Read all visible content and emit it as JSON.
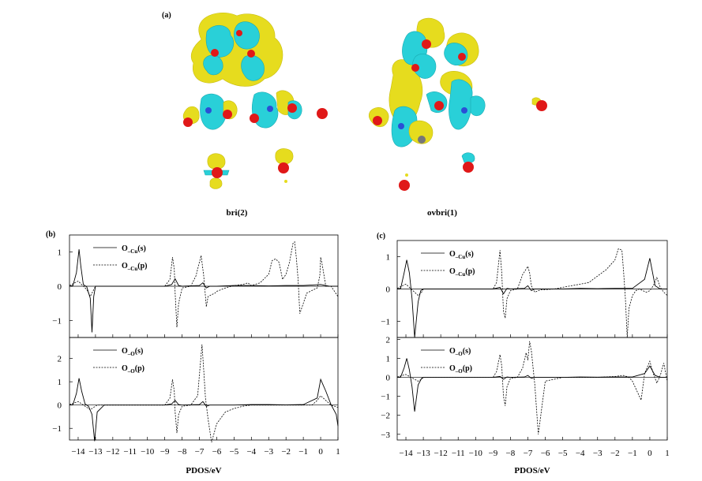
{
  "figure": {
    "panel_a_label": "(a)",
    "panel_b_label": "(b)",
    "panel_c_label": "(c)",
    "structure_left_caption": "bri(2)",
    "structure_right_caption": "ovbri(1)",
    "colors": {
      "lobe_positive": "#e6dc1e",
      "lobe_negative": "#29d0d8",
      "atom_O": "#e01818",
      "atom_Cu": "#2a4fd6"
    }
  },
  "chart_data": [
    {
      "type": "line",
      "panel": "(b)",
      "xlabel": "PDOS/eV",
      "xlim": [
        -14.5,
        1
      ],
      "x_ticks": [
        "−14",
        "−13",
        "−12",
        "−11",
        "−10",
        "−9",
        "−8",
        "−7",
        "−6",
        "−5",
        "−4",
        "−3",
        "−2",
        "−1",
        "0",
        "1"
      ],
      "subplots": [
        {
          "ylim": [
            -1.5,
            1.5
          ],
          "y_ticks": [
            "1",
            "0",
            "−1"
          ],
          "series": [
            {
              "name": "O_Cu(s)",
              "sub": "–Cu",
              "base": "O",
              "tail": "(s)",
              "style": "solid",
              "x": [
                -14.5,
                -14.3,
                -14.1,
                -13.95,
                -13.85,
                -13.7,
                -13.5,
                -13.3,
                -13.2,
                -13.1,
                -13,
                -12,
                -9,
                -8.6,
                -8.4,
                -8.2,
                -8,
                -7,
                -6.8,
                -6.6,
                -6.4,
                -6,
                -5,
                -4,
                -3,
                -2,
                -1,
                0,
                0.5,
                1
              ],
              "y": [
                0,
                0.02,
                0.4,
                1.08,
                0.6,
                0.05,
                -0.02,
                -0.35,
                -1.35,
                -0.3,
                0,
                0,
                0,
                0.05,
                0.22,
                0.02,
                0,
                0.02,
                0.1,
                -0.05,
                0,
                0,
                0.02,
                0.02,
                0.01,
                0.02,
                0.02,
                0.05,
                0,
                0
              ]
            },
            {
              "name": "O_Cu(p)",
              "sub": "–Cu",
              "base": "O",
              "tail": "(p)",
              "style": "dashed",
              "x": [
                -14.5,
                -14.2,
                -14,
                -13.8,
                -13.5,
                -13.3,
                -13.1,
                -13,
                -9,
                -8.7,
                -8.55,
                -8.45,
                -8.4,
                -8.3,
                -8.2,
                -8,
                -7.5,
                -7.2,
                -6.9,
                -6.75,
                -6.6,
                -6.5,
                -6.3,
                -6.1,
                -6,
                -5.5,
                -5,
                -4.5,
                -4.2,
                -4,
                -3.5,
                -3,
                -2.8,
                -2.6,
                -2.4,
                -2.2,
                -2,
                -1.8,
                -1.6,
                -1.5,
                -1.4,
                -1.3,
                -1.2,
                -1,
                -0.8,
                -0.6,
                -0.4,
                -0.2,
                -0.05,
                0,
                0.1,
                0.3,
                0.6,
                1
              ],
              "y": [
                0.02,
                0.1,
                0.15,
                0.05,
                -0.1,
                -0.3,
                -0.1,
                0,
                0,
                0.2,
                0.85,
                0.5,
                -0.2,
                -1.2,
                -0.5,
                -0.05,
                0,
                0.3,
                0.9,
                0.3,
                -0.6,
                -0.3,
                -0.25,
                -0.2,
                -0.15,
                -0.05,
                0.02,
                0.05,
                0.1,
                0.02,
                0.1,
                0.35,
                0.75,
                0.8,
                0.7,
                0.2,
                0.35,
                0.7,
                1.25,
                1.3,
                0.8,
                0.2,
                -0.8,
                -0.5,
                -0.2,
                -0.15,
                -0.1,
                -0.05,
                0.3,
                0.85,
                0.6,
                0,
                0,
                -0.3
              ]
            }
          ],
          "legend": "top-left"
        },
        {
          "ylim": [
            -1.5,
            2.9
          ],
          "y_ticks": [
            "2",
            "1",
            "0",
            "−1"
          ],
          "series": [
            {
              "name": "O_O(s)",
              "sub": "–O",
              "base": "O",
              "tail": "(s)",
              "style": "solid",
              "x": [
                -14.5,
                -14.3,
                -14.1,
                -13.95,
                -13.8,
                -13.6,
                -13.4,
                -13.2,
                -13.05,
                -12.9,
                -12.5,
                -9,
                -8.6,
                -8.4,
                -8.2,
                -8,
                -7,
                -6.8,
                -6.6,
                -6.4,
                -6,
                -5,
                -4,
                -3,
                -2,
                -1,
                -0.2,
                0,
                0.3,
                0.6,
                0.9,
                1
              ],
              "y": [
                0,
                0.02,
                0.5,
                1.15,
                0.6,
                0.05,
                -0.05,
                -0.4,
                -1.55,
                -0.3,
                0,
                0,
                0.05,
                0.2,
                0.02,
                0,
                0.02,
                0.15,
                -0.05,
                0,
                0,
                0,
                0.02,
                0.02,
                0.01,
                0.02,
                0.3,
                1.1,
                0.6,
                0.02,
                -0.4,
                -0.9
              ]
            },
            {
              "name": "O_O(p)",
              "sub": "–O",
              "base": "O",
              "tail": "(p)",
              "style": "dashed",
              "x": [
                -14.5,
                -14.2,
                -14,
                -13.8,
                -13.5,
                -13.3,
                -13.1,
                -12.9,
                -9,
                -8.7,
                -8.55,
                -8.45,
                -8.4,
                -8.3,
                -8.2,
                -8,
                -7.5,
                -7.1,
                -6.85,
                -6.75,
                -6.65,
                -6.5,
                -6.3,
                -6,
                -5.5,
                -5,
                -4.5,
                -4,
                -3,
                -2,
                -1,
                -0.5,
                -0.2,
                0,
                0.3,
                0.6,
                1
              ],
              "y": [
                0.02,
                0.1,
                0.15,
                0.05,
                -0.1,
                -0.2,
                -0.1,
                0,
                0,
                0.3,
                1.1,
                0.6,
                -0.3,
                -1.2,
                -0.4,
                -0.05,
                0,
                0.4,
                2.6,
                1.5,
                0.3,
                -0.6,
                -1.6,
                -0.8,
                -0.3,
                -0.15,
                -0.05,
                0,
                0,
                0,
                0,
                0,
                0.2,
                0.4,
                0.2,
                0,
                -0.1
              ]
            }
          ],
          "legend": "top-left"
        }
      ]
    },
    {
      "type": "line",
      "panel": "(c)",
      "xlabel": "PDOS/eV",
      "xlim": [
        -14.5,
        1
      ],
      "x_ticks": [
        "−14",
        "−13",
        "−12",
        "−11",
        "−10",
        "−9",
        "−8",
        "−7",
        "−6",
        "−5",
        "−4",
        "−3",
        "−2",
        "−1",
        "0",
        "1"
      ],
      "subplots": [
        {
          "ylim": [
            -1.5,
            1.5
          ],
          "y_ticks": [
            "1",
            "0",
            "−1"
          ],
          "series": [
            {
              "name": "O_Cu(s)",
              "sub": "–Cu",
              "base": "O",
              "tail": "(s)",
              "style": "solid",
              "x": [
                -14.5,
                -14.3,
                -14.1,
                -13.95,
                -13.8,
                -13.65,
                -13.5,
                -13.3,
                -13.15,
                -13,
                -12,
                -9,
                -8.6,
                -8.4,
                -8.2,
                -8,
                -7.2,
                -7,
                -6.8,
                -6.6,
                -6,
                -5,
                -4,
                -3,
                -2,
                -1,
                -0.3,
                0,
                0.3,
                0.6,
                1
              ],
              "y": [
                0,
                0.02,
                0.5,
                0.9,
                0.5,
                -0.3,
                -1.5,
                -0.4,
                -0.05,
                0,
                0,
                0,
                0.05,
                -0.15,
                0.02,
                0,
                0.02,
                0.1,
                -0.05,
                0,
                0,
                0,
                0.02,
                0.01,
                0.02,
                0.02,
                0.3,
                0.95,
                0.1,
                0,
                0
              ]
            },
            {
              "name": "O_Cu(p)",
              "sub": "–Cu",
              "base": "O",
              "tail": "(p)",
              "style": "dashed",
              "x": [
                -14.5,
                -14.2,
                -14,
                -13.8,
                -13.5,
                -13.3,
                -13.1,
                -13,
                -9,
                -8.8,
                -8.6,
                -8.5,
                -8.45,
                -8.4,
                -8.3,
                -8.2,
                -8,
                -7.6,
                -7.3,
                -7,
                -6.9,
                -6.8,
                -6.6,
                -6.4,
                -6.2,
                -6,
                -5.5,
                -5,
                -4.5,
                -4,
                -3.5,
                -3,
                -2.5,
                -2,
                -1.8,
                -1.6,
                -1.5,
                -1.4,
                -1.3,
                -1.2,
                -1,
                -0.8,
                -0.6,
                -0.4,
                -0.2,
                0,
                0.2,
                0.4,
                0.6,
                0.8,
                1
              ],
              "y": [
                0.02,
                0.1,
                0.15,
                0.05,
                -0.1,
                -0.2,
                -0.1,
                0,
                0,
                0.2,
                1.2,
                0.5,
                -0.1,
                -0.7,
                -0.9,
                -0.3,
                -0.05,
                0,
                0.45,
                0.7,
                0.5,
                0.1,
                -0.1,
                -0.05,
                -0.02,
                -0.02,
                0,
                0.05,
                0.1,
                0.15,
                0.2,
                0.4,
                0.6,
                0.9,
                1.25,
                1.2,
                0.5,
                -0.3,
                -1.5,
                -0.6,
                -0.2,
                -0.05,
                0,
                -0.05,
                -0.1,
                -0.05,
                0.1,
                0.35,
                0.05,
                -0.1,
                -0.2
              ]
            }
          ],
          "legend": "top-left"
        },
        {
          "ylim": [
            -3.3,
            2.1
          ],
          "y_ticks": [
            "2",
            "1",
            "0",
            "−1",
            "−2",
            "−3"
          ],
          "series": [
            {
              "name": "O_O(s)",
              "sub": "–O",
              "base": "O",
              "tail": "(s)",
              "style": "solid",
              "x": [
                -14.5,
                -14.3,
                -14.1,
                -13.95,
                -13.8,
                -13.65,
                -13.5,
                -13.3,
                -13.1,
                -13,
                -12,
                -9,
                -8.6,
                -8.4,
                -8.2,
                -8,
                -7.2,
                -7,
                -6.8,
                -6.6,
                -6,
                -5,
                -4,
                -3,
                -2,
                -1,
                -0.3,
                0,
                0.3,
                0.6,
                1
              ],
              "y": [
                0,
                0.02,
                0.5,
                1.0,
                0.4,
                -0.5,
                -1.8,
                -0.4,
                -0.05,
                0,
                0,
                0,
                0.05,
                -0.1,
                0.02,
                0,
                0.02,
                0.1,
                -0.05,
                0,
                0,
                0,
                0.02,
                0.01,
                0.02,
                0.02,
                0.2,
                0.6,
                0.1,
                0,
                0
              ]
            },
            {
              "name": "O_O(p)",
              "sub": "–O",
              "base": "O",
              "tail": "(p)",
              "style": "dashed",
              "x": [
                -14.5,
                -14.2,
                -14,
                -13.8,
                -13.5,
                -13.3,
                -13.1,
                -13,
                -9,
                -8.8,
                -8.6,
                -8.5,
                -8.45,
                -8.4,
                -8.3,
                -8.2,
                -8,
                -7.6,
                -7.3,
                -7.1,
                -7,
                -6.9,
                -6.8,
                -6.6,
                -6.4,
                -6,
                -5,
                -4,
                -3,
                -2,
                -1.5,
                -1.2,
                -1,
                -0.5,
                -0.3,
                0,
                0.2,
                0.4,
                0.6,
                0.8,
                1
              ],
              "y": [
                0.02,
                0.1,
                0.15,
                0.05,
                -0.1,
                -0.2,
                -0.1,
                0,
                0,
                0.3,
                1.2,
                0.6,
                -0.2,
                -1.0,
                -1.5,
                -0.5,
                -0.05,
                0,
                0.5,
                1.3,
                0.9,
                1.9,
                1.4,
                -0.4,
                -3.0,
                -0.2,
                0,
                0,
                0,
                0.05,
                0.1,
                0,
                -0.2,
                -1.2,
                0.2,
                0.85,
                0.2,
                -0.3,
                0.1,
                0.75,
                -0.2
              ]
            }
          ],
          "legend": "top-left"
        }
      ]
    }
  ]
}
